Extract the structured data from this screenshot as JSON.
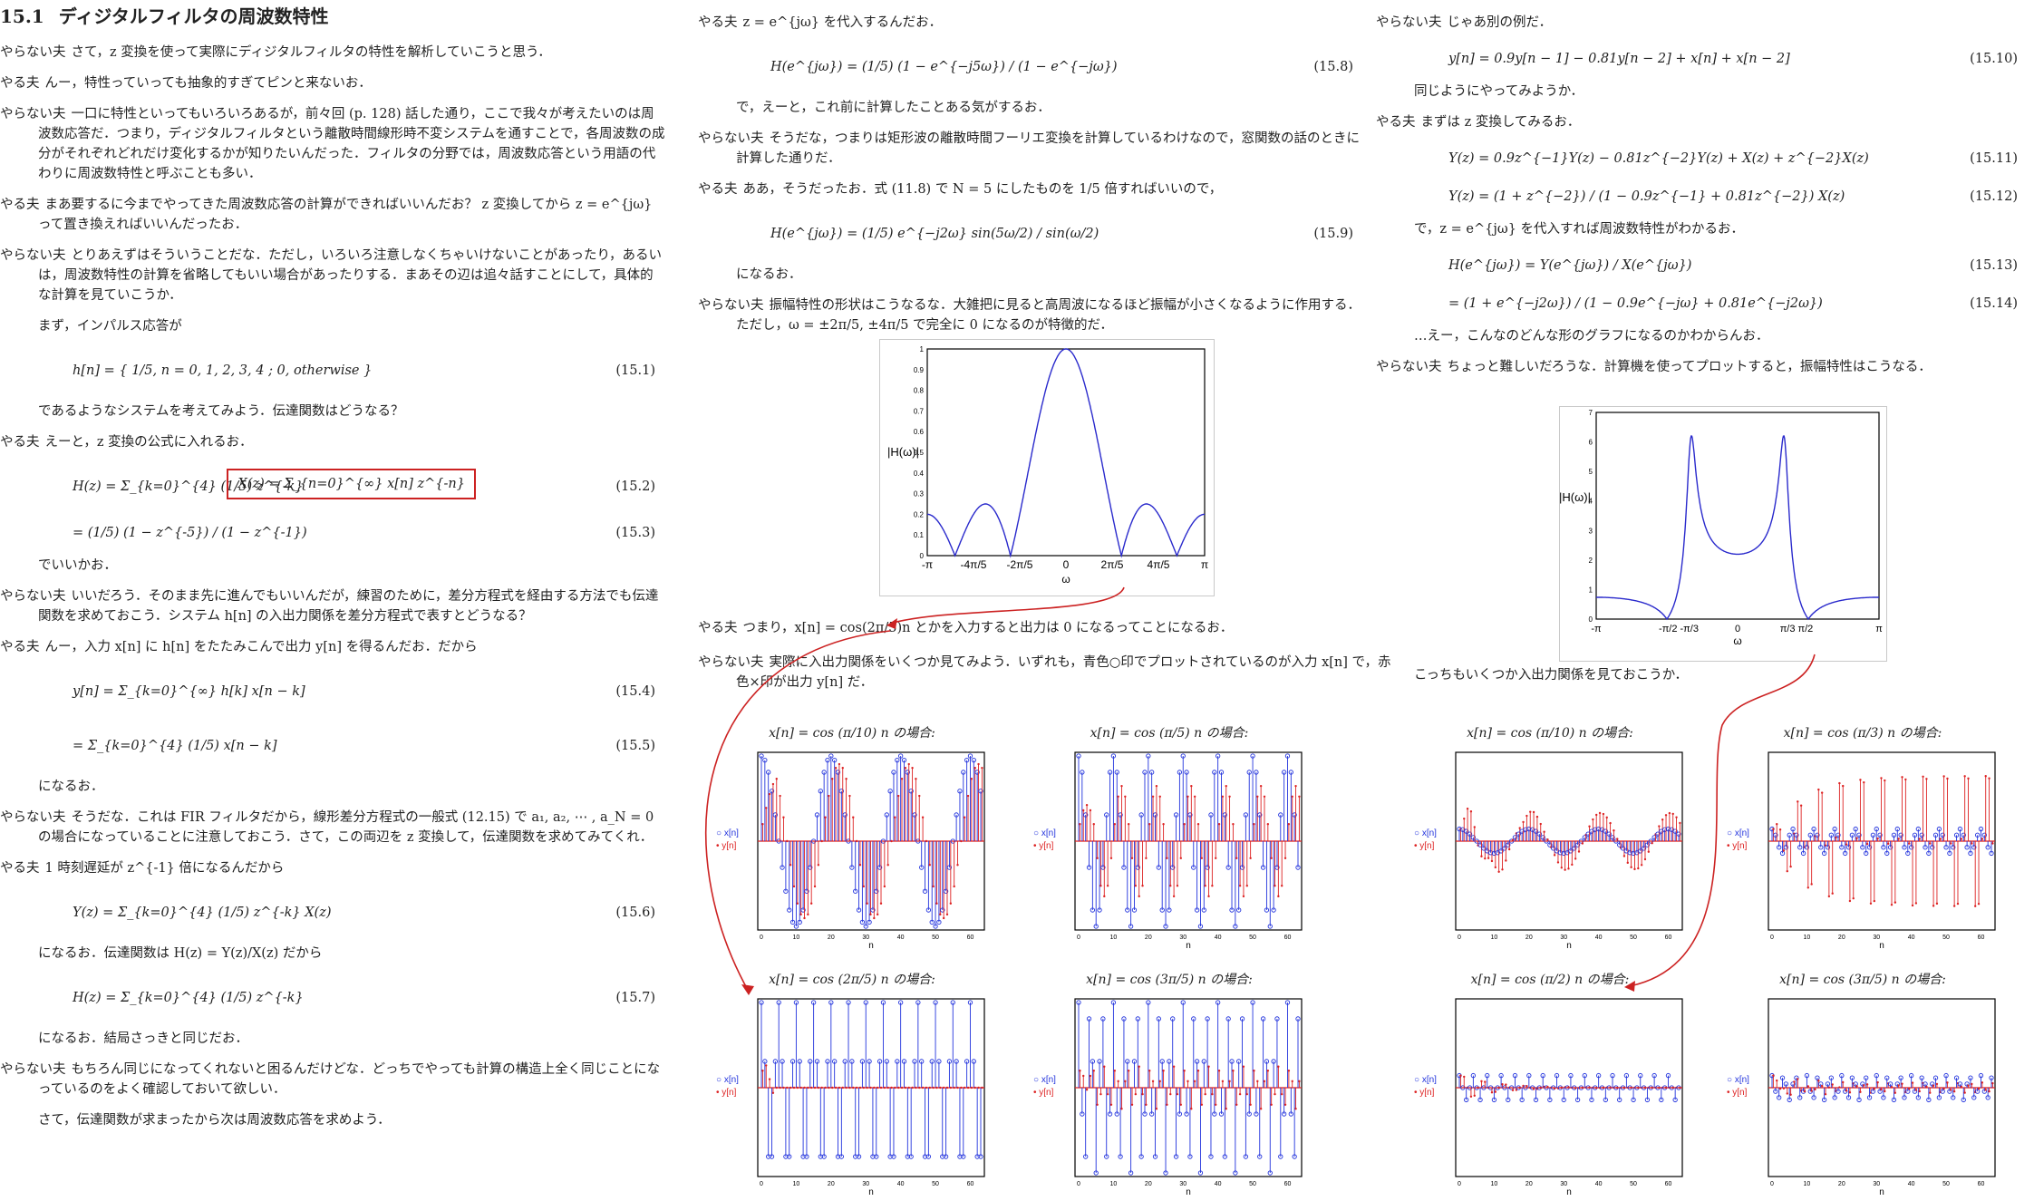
{
  "left": {
    "section_num": "15.1",
    "section_title": "ディジタルフィルタの周波数特性",
    "paras": [
      {
        "spk": "やらない夫",
        "text": "さて，z 変換を使って実際にディジタルフィルタの特性を解析していこうと思う．"
      },
      {
        "spk": "やる夫",
        "text": "んー，特性っていっても抽象的すぎてピンと来ないお．"
      },
      {
        "spk": "やらない夫",
        "text": "一口に特性といってもいろいろあるが，前々回 (p. 128) 話した通り，ここで我々が考えたいのは周波数応答だ．つまり，ディジタルフィルタという離散時間線形時不変システムを通すことで，各周波数の成分がそれぞれどれだけ変化するかが知りたいんだった．フィルタの分野では，周波数応答という用語の代わりに周波数特性と呼ぶことも多い．"
      },
      {
        "spk": "やる夫",
        "text": "まあ要するに今までやってきた周波数応答の計算ができればいいんだお？ z 変換してから z = e^{jω} って置き換えればいいんだったお．"
      },
      {
        "spk": "やらない夫",
        "text": "とりあえずはそういうことだな．ただし，いろいろ注意しなくちゃいけないことがあったり，あるいは，周波数特性の計算を省略してもいい場合があったりする．まあその辺は追々話すことにして，具体的な計算を見ていこうか．"
      }
    ],
    "p_impulse": "まず，インパルス応答が",
    "eq1": "h[n] = { 1/5,  n = 0, 1, 2, 3, 4 ;  0,  otherwise }",
    "eq1_no": "(15.1)",
    "p_system": "であるようなシステムを考えてみよう．伝達関数はどうなる？",
    "p_yaruo2_spk": "やる夫",
    "p_yaruo2": "えーと，z 変換の公式に入れるお．",
    "eq2": "H(z) = Σ_{k=0}^{4} (1/5) z^{-k}",
    "eq2_annot": "X(z) = Σ_{n=0}^{∞} x[n] z^{-n}",
    "eq2_no": "(15.2)",
    "eq3": "= (1/5) (1 − z^{-5}) / (1 − z^{-1})",
    "eq3_no": "(15.3)",
    "p_ok": "でいいかお．",
    "p_diff_spk": "やらない夫",
    "p_diff": "いいだろう．そのまま先に進んでもいいんだが，練習のために，差分方程式を経由する方法でも伝達関数を求めておこう．システム h[n] の入出力関係を差分方程式で表すとどうなる？",
    "p_conv_spk": "やる夫",
    "p_conv": "んー，入力 x[n] に h[n] をたたみこんで出力 y[n] を得るんだお．だから",
    "eq4": "y[n] = Σ_{k=0}^{∞} h[k] x[n − k]",
    "eq4_no": "(15.4)",
    "eq5": "= Σ_{k=0}^{4} (1/5) x[n − k]",
    "eq5_no": "(15.5)",
    "p_naruo": "になるお．",
    "p_fir_spk": "やらない夫",
    "p_fir": "そうだな．これは FIR フィルタだから，線形差分方程式の一般式 (12.15) で a₁, a₂, ⋯ , a_N = 0 の場合になっていることに注意しておこう．さて，この両辺を z 変換して，伝達関数を求めてみてくれ．",
    "p_delay_spk": "やる夫",
    "p_delay": "1 時刻遅延が z^{-1} 倍になるんだから",
    "eq6": "Y(z) = Σ_{k=0}^{4} (1/5) z^{-k} X(z)",
    "eq6_no": "(15.6)",
    "p_tf": "になるお．伝達関数は H(z) = Y(z)/X(z) だから",
    "eq7": "H(z) = Σ_{k=0}^{4} (1/5) z^{-k}",
    "eq7_no": "(15.7)",
    "p_same": "になるお．結局さっきと同じだお．",
    "p_check_spk": "やらない夫",
    "p_check": "もちろん同じになってくれないと困るんだけどな．どっちでやっても計算の構造上全く同じことになっているのをよく確認しておいて欲しい．",
    "p_next": "さて，伝達関数が求まったから次は周波数応答を求めよう．"
  },
  "mid": {
    "p1_spk": "やる夫",
    "p1": "z = e^{jω} を代入するんだお．",
    "eq8": "H(e^{jω}) = (1/5) (1 − e^{−j5ω}) / (1 − e^{−jω})",
    "eq8_no": "(15.8)",
    "p2": "で，えーと，これ前に計算したことある気がするお．",
    "p3_spk": "やらない夫",
    "p3": "そうだな，つまりは矩形波の離散時間フーリエ変換を計算しているわけなので，窓関数の話のときに計算した通りだ．",
    "p4_spk": "やる夫",
    "p4": "ああ，そうだったお．式 (11.8) で N = 5 にしたものを 1/5 倍すればいいので，",
    "eq9": "H(e^{jω}) = (1/5) e^{−j2ω} sin(5ω/2) / sin(ω/2)",
    "eq9_no": "(15.9)",
    "p5": "になるお．",
    "p6_spk": "やらない夫",
    "p6": "振幅特性の形状はこうなるな．大雑把に見ると高周波になるほど振幅が小さくなるように作用する．ただし，ω = ±2π/5, ±4π/5 で完全に 0 になるのが特徴的だ．",
    "p7_spk": "やる夫",
    "p7": "つまり，x[n] = cos(2π/5)n とかを入力すると出力は 0 になるってことになるお．",
    "p8_spk": "やらない夫",
    "p8": "実際に入出力関係をいくつか見てみよう．いずれも，青色○印でプロットされているのが入力 x[n] で，赤色×印が出力 y[n] だ．",
    "cap_a": "x[n] = cos (π/10) n の場合:",
    "cap_b": "x[n] = cos (π/5) n の場合:",
    "cap_c": "x[n] = cos (2π/5) n の場合:",
    "cap_d": "x[n] = cos (3π/5) n の場合:"
  },
  "right": {
    "p1_spk": "やらない夫",
    "p1": "じゃあ別の例だ．",
    "eq10": "y[n] = 0.9y[n − 1] − 0.81y[n − 2] + x[n] + x[n − 2]",
    "eq10_no": "(15.10)",
    "p2": "同じようにやってみようか．",
    "p3_spk": "やる夫",
    "p3": "まずは z 変換してみるお．",
    "eq11": "Y(z) = 0.9z^{−1}Y(z) − 0.81z^{−2}Y(z) + X(z) + z^{−2}X(z)",
    "eq11_no": "(15.11)",
    "eq12": "Y(z) = (1 + z^{−2}) / (1 − 0.9z^{−1} + 0.81z^{−2}) X(z)",
    "eq12_no": "(15.12)",
    "p4": "で，z = e^{jω} を代入すれば周波数特性がわかるお．",
    "eq13": "H(e^{jω}) = Y(e^{jω}) / X(e^{jω})",
    "eq13_no": "(15.13)",
    "eq14": "= (1 + e^{−j2ω}) / (1 − 0.9e^{−jω} + 0.81e^{−j2ω})",
    "eq14_no": "(15.14)",
    "p5": "…えー，こんなのどんな形のグラフになるのかわからんお．",
    "p6_spk": "やらない夫",
    "p6": "ちょっと難しいだろうな．計算機を使ってプロットすると，振幅特性はこうなる．",
    "p7": "こっちもいくつか入出力関係を見ておこうか．",
    "cap_a": "x[n] = cos (π/10) n の場合:",
    "cap_b": "x[n] = cos (π/3) n の場合:",
    "cap_c": "x[n] = cos (π/2) n の場合:",
    "cap_d": "x[n] = cos (3π/5) n の場合:"
  },
  "fig_mag1": {
    "ylabel": "|H(ω)|",
    "xlabel": "ω",
    "yticks": [
      "0",
      "0.1",
      "0.2",
      "0.3",
      "0.4",
      "0.5",
      "0.6",
      "0.7",
      "0.8",
      "0.9",
      "1"
    ],
    "xticks": [
      "-π",
      "-4π/5",
      "-2π/5",
      "0",
      "2π/5",
      "4π/5",
      "π"
    ],
    "line_color": "#2a2acc"
  },
  "fig_mag2": {
    "ylabel": "|H(ω)|",
    "xlabel": "ω",
    "yticks": [
      "0",
      "1",
      "2",
      "3",
      "4",
      "5",
      "6",
      "7"
    ],
    "xticks": [
      "-π",
      "-π/2 -π/3",
      "0",
      "π/3 π/2",
      "π"
    ],
    "line_color": "#2a2acc"
  },
  "legend": {
    "x": "x[n]",
    "y": "y[n]"
  },
  "stem_axis": {
    "xlabel": "n",
    "xticks": [
      "0",
      "10",
      "20",
      "30",
      "40",
      "50",
      "60"
    ]
  },
  "colors": {
    "input": "#2233dd",
    "output": "#dd2222",
    "arrow": "#cc2222",
    "box_red": "#cc2222",
    "box_green": "#2a8a6a"
  }
}
